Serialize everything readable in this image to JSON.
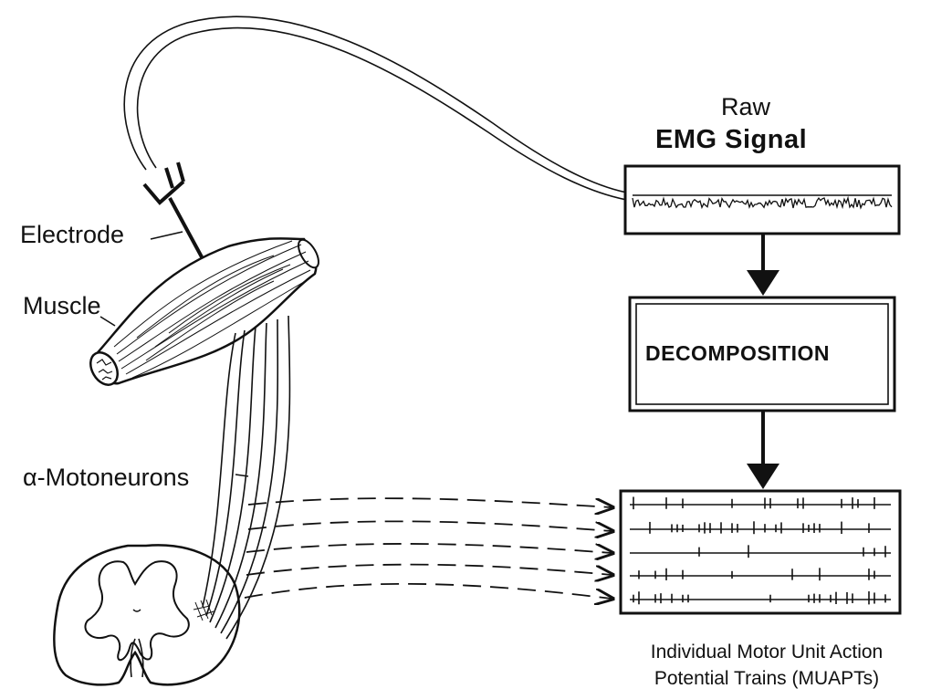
{
  "labels": {
    "electrode": "Electrode",
    "muscle": "Muscle",
    "motoneurons": "α-Motoneurons",
    "raw": "Raw",
    "emg_signal": "EMG Signal",
    "decomposition": "DECOMPOSITION",
    "caption_line1": "Individual Motor Unit Action",
    "caption_line2": "Potential Trains (MUAPTs)"
  },
  "colors": {
    "ink": "#111111",
    "paper": "#ffffff"
  }
}
